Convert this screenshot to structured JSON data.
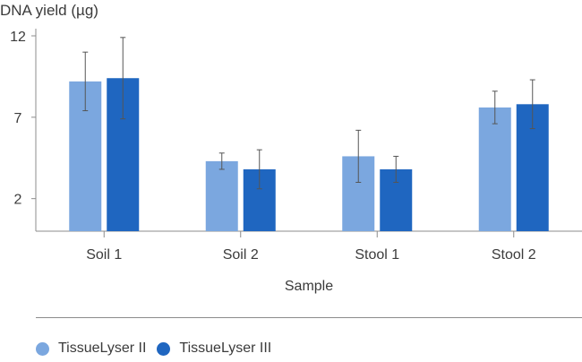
{
  "chart_data": {
    "type": "bar",
    "title": "",
    "ylabel": "DNA yield (µg)",
    "xlabel": "Sample",
    "ylim": [
      0,
      12
    ],
    "yticks": [
      2,
      7,
      12
    ],
    "grid": false,
    "legend_position": "bottom-left",
    "categories": [
      "Soil 1",
      "Soil 2",
      "Stool 1",
      "Stool 2"
    ],
    "series": [
      {
        "name": "TissueLyser II",
        "color": "#7ba7df",
        "values": [
          9.2,
          4.3,
          4.6,
          7.6
        ],
        "error": [
          1.8,
          0.5,
          1.6,
          1.0
        ]
      },
      {
        "name": "TissueLyser III",
        "color": "#1f66c0",
        "values": [
          9.4,
          3.8,
          3.8,
          7.8
        ],
        "error": [
          2.5,
          1.2,
          0.8,
          1.5
        ]
      }
    ]
  }
}
